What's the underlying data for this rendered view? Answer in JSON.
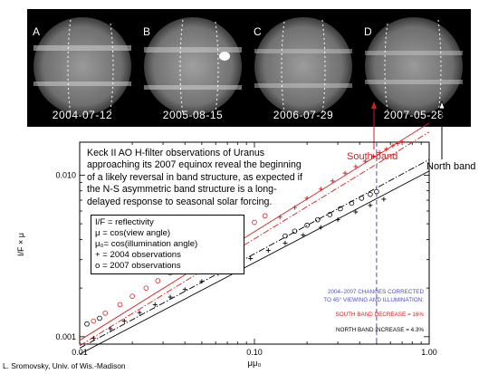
{
  "panels": [
    {
      "letter": "A",
      "date": "2004-07-12"
    },
    {
      "letter": "B",
      "date": "2005-08-15"
    },
    {
      "letter": "C",
      "date": "2006-07-29"
    },
    {
      "letter": "D",
      "date": "2007-05-28"
    }
  ],
  "annotations": {
    "south_band": "South band",
    "north_band": "North band",
    "south_color": "#d22020",
    "north_color": "#000000"
  },
  "description": "Keck II AO H-filter observations of Uranus approaching its 2007 equinox reveal the beginning of a likely reversal in band structure, as expected if the N-S asymmetric band structure is a long-delayed response to seasonal solar forcing.",
  "legend": {
    "line1": "I/F = reflectivity",
    "line2": "μ = cos(view angle)",
    "line3": "μ₀= cos(illumination angle)",
    "line4": "+ = 2004 observations",
    "line5": "o = 2007 observations"
  },
  "corrections": {
    "line1": "2004–2007 CHANGES CORRECTED",
    "line2": "TO 45° VIEWING AND ILLUMINATION:",
    "line3": "SOUTH BAND DECREASE =  16%",
    "line4": "NORTH BAND INCREASE =   4.3%"
  },
  "credit": "L. Sromovsky, Univ. of Wis.-Madison",
  "chart_data": {
    "type": "scatter",
    "xlabel": "μμ₀",
    "ylabel": "I/F × μ",
    "x_scale": "log",
    "y_scale": "log",
    "xlim": [
      0.01,
      1.0
    ],
    "ylim": [
      0.0009,
      0.016
    ],
    "x_ticks": [
      {
        "value": 0.01,
        "label": "0.01"
      },
      {
        "value": 0.1,
        "label": "0.10"
      },
      {
        "value": 1.0,
        "label": "1.00"
      }
    ],
    "y_ticks": [
      {
        "value": 0.001,
        "label": "0.001"
      },
      {
        "value": 0.01,
        "label": "0.010"
      }
    ],
    "reference_x": 0.5,
    "series": [
      {
        "name": "South band 2004",
        "marker": "+",
        "color": "#d22020",
        "x": [
          0.14,
          0.17,
          0.2,
          0.24,
          0.28,
          0.33,
          0.38,
          0.43,
          0.48,
          0.52,
          0.57,
          0.62,
          0.66,
          0.7
        ],
        "y": [
          0.0055,
          0.0063,
          0.0072,
          0.0082,
          0.0092,
          0.0103,
          0.0113,
          0.0122,
          0.0131,
          0.0138,
          0.0145,
          0.0152,
          0.0157,
          0.0161
        ]
      },
      {
        "name": "South band 2007",
        "marker": "o",
        "color": "#d22020",
        "x": [
          0.012,
          0.014,
          0.017,
          0.02,
          0.024,
          0.028,
          0.033,
          0.04,
          0.048,
          0.056,
          0.065,
          0.075,
          0.085,
          0.1,
          0.115
        ],
        "y": [
          0.00125,
          0.0014,
          0.00158,
          0.00178,
          0.002,
          0.00222,
          0.00248,
          0.00282,
          0.00318,
          0.00354,
          0.0039,
          0.00428,
          0.00465,
          0.0051,
          0.0056
        ]
      },
      {
        "name": "North band 2004",
        "marker": "+",
        "color": "#000000",
        "x": [
          0.012,
          0.015,
          0.018,
          0.022,
          0.027,
          0.033,
          0.04,
          0.05,
          0.062,
          0.077,
          0.095,
          0.12,
          0.15,
          0.19,
          0.24,
          0.3,
          0.38,
          0.46,
          0.55
        ],
        "y": [
          0.00098,
          0.00112,
          0.00125,
          0.00141,
          0.00158,
          0.00176,
          0.00196,
          0.0022,
          0.00246,
          0.00274,
          0.00305,
          0.00342,
          0.0038,
          0.00425,
          0.00475,
          0.0053,
          0.00592,
          0.0065,
          0.0071
        ]
      },
      {
        "name": "North band 2007",
        "marker": "o",
        "color": "#000000",
        "x": [
          0.011,
          0.013,
          0.15,
          0.17,
          0.2,
          0.23,
          0.27,
          0.31,
          0.36,
          0.41,
          0.46,
          0.5
        ],
        "y": [
          0.0012,
          0.0013,
          0.0042,
          0.0045,
          0.0049,
          0.0053,
          0.0057,
          0.0062,
          0.0067,
          0.0072,
          0.0076,
          0.0079
        ]
      }
    ],
    "fit_lines": [
      {
        "name": "South band fit 2004",
        "style": "solid",
        "color": "#d22020",
        "x": [
          0.01,
          1.0
        ],
        "y": [
          0.00095,
          0.021
        ]
      },
      {
        "name": "South band fit 2007",
        "style": "dash-dot",
        "color": "#d22020",
        "x": [
          0.01,
          1.0
        ],
        "y": [
          0.00088,
          0.0185
        ]
      },
      {
        "name": "North band fit 2007",
        "style": "dash-dot",
        "color": "#000000",
        "x": [
          0.01,
          1.0
        ],
        "y": [
          0.00085,
          0.0125
        ]
      },
      {
        "name": "North band fit 2004",
        "style": "solid",
        "color": "#000000",
        "x": [
          0.01,
          1.0
        ],
        "y": [
          0.00078,
          0.0106
        ]
      }
    ]
  }
}
